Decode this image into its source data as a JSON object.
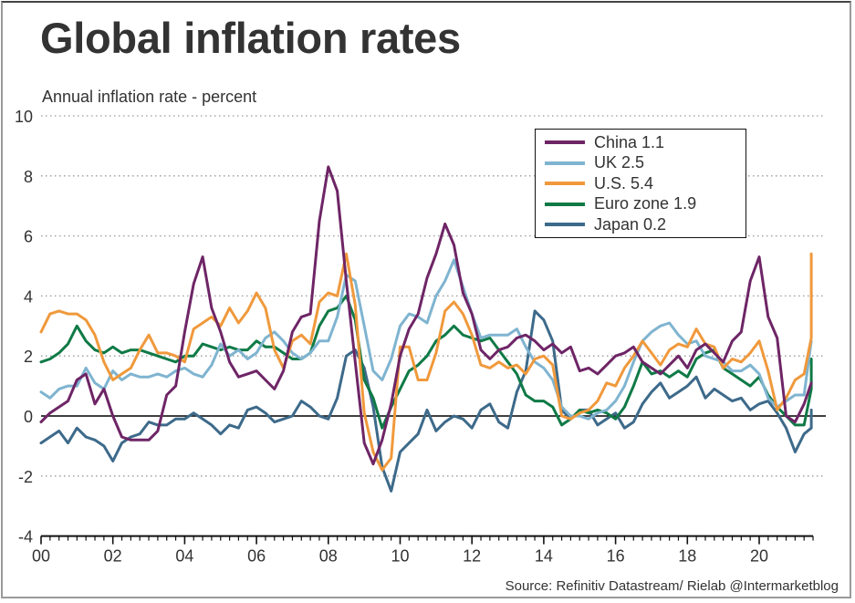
{
  "header": {
    "title": "Global inflation rates",
    "subtitle": "Annual inflation rate - percent",
    "source": "Source: Refinitiv Datastream/ Rielab @Intermarketblog"
  },
  "chart_data": {
    "type": "line",
    "title": "Global inflation rates",
    "subtitle": "Annual inflation rate - percent",
    "xlabel": "",
    "ylabel": "Annual inflation rate - percent",
    "xlim": [
      2000,
      2021.9
    ],
    "ylim": [
      -4,
      10
    ],
    "x_ticks": [
      2000,
      2002,
      2004,
      2006,
      2008,
      2010,
      2012,
      2014,
      2016,
      2018,
      2020
    ],
    "x_tick_labels": [
      "00",
      "02",
      "04",
      "06",
      "08",
      "10",
      "12",
      "14",
      "16",
      "18",
      "20"
    ],
    "y_ticks": [
      -4,
      -2,
      0,
      2,
      4,
      6,
      8,
      10
    ],
    "y_tick_labels": [
      "-4",
      "-2",
      "0",
      "2",
      "4",
      "6",
      "8",
      "10"
    ],
    "grid": "horizontal-dotted",
    "zero_line": true,
    "legend_position": "top-right",
    "x_start": 2000.0,
    "x_step": 0.25,
    "series": [
      {
        "name": "China",
        "legend_label": "China 1.1",
        "latest": 1.1,
        "color": "#6e2566",
        "values": [
          -0.2,
          0.1,
          0.3,
          0.5,
          1.2,
          1.4,
          0.4,
          0.9,
          0.0,
          -0.7,
          -0.8,
          -0.8,
          -0.8,
          -0.5,
          0.7,
          1.0,
          2.8,
          4.4,
          5.3,
          3.6,
          2.8,
          1.8,
          1.3,
          1.4,
          1.5,
          1.2,
          0.9,
          1.5,
          2.8,
          3.3,
          3.4,
          6.5,
          8.3,
          7.5,
          4.5,
          1.8,
          -0.9,
          -1.6,
          -0.8,
          0.4,
          2.0,
          2.9,
          3.4,
          4.6,
          5.4,
          6.4,
          5.7,
          4.1,
          3.4,
          2.2,
          1.9,
          2.2,
          2.3,
          2.6,
          2.7,
          2.5,
          2.2,
          2.4,
          2.1,
          2.3,
          1.5,
          1.6,
          1.4,
          1.7,
          2.0,
          2.1,
          2.3,
          1.8,
          1.6,
          1.4,
          1.7,
          2.0,
          1.6,
          2.2,
          2.4,
          2.1,
          1.8,
          2.5,
          2.8,
          4.5,
          5.3,
          3.3,
          2.6,
          0.0,
          -0.2,
          0.4,
          1.1
        ]
      },
      {
        "name": "UK",
        "legend_label": "UK 2.5",
        "latest": 2.5,
        "color": "#7fb4d0",
        "values": [
          0.8,
          0.6,
          0.9,
          1.0,
          1.0,
          1.6,
          1.1,
          0.9,
          1.5,
          1.2,
          1.4,
          1.3,
          1.3,
          1.4,
          1.3,
          1.5,
          1.6,
          1.4,
          1.3,
          1.7,
          2.4,
          2.0,
          2.2,
          1.9,
          2.1,
          2.6,
          2.8,
          2.5,
          2.1,
          1.9,
          2.1,
          2.5,
          2.5,
          3.3,
          4.7,
          4.5,
          3.0,
          1.5,
          1.2,
          1.9,
          3.0,
          3.4,
          3.3,
          3.1,
          4.0,
          4.5,
          5.2,
          4.3,
          3.4,
          2.6,
          2.7,
          2.7,
          2.7,
          2.9,
          2.3,
          1.8,
          1.6,
          1.2,
          0.3,
          0.0,
          0.0,
          -0.1,
          0.1,
          0.2,
          0.5,
          1.0,
          1.8,
          2.5,
          2.8,
          3.0,
          3.1,
          2.7,
          2.4,
          2.5,
          2.0,
          1.9,
          1.8,
          1.5,
          1.5,
          1.7,
          1.4,
          0.6,
          0.3,
          0.5,
          0.7,
          0.7,
          2.5
        ]
      },
      {
        "name": "U.S.",
        "legend_label": "U.S. 5.4",
        "latest": 5.4,
        "color": "#f0993c",
        "values": [
          2.8,
          3.4,
          3.5,
          3.4,
          3.4,
          3.2,
          2.7,
          1.8,
          1.2,
          1.4,
          1.6,
          2.2,
          2.7,
          2.1,
          2.1,
          2.0,
          1.8,
          2.9,
          3.1,
          3.3,
          3.0,
          3.6,
          3.1,
          3.5,
          4.1,
          3.6,
          2.2,
          1.6,
          2.5,
          2.7,
          2.4,
          3.8,
          4.1,
          4.0,
          5.4,
          3.7,
          0.1,
          -1.2,
          -1.8,
          -1.4,
          2.3,
          2.3,
          1.2,
          1.2,
          2.1,
          3.5,
          3.8,
          3.4,
          2.7,
          1.7,
          1.6,
          1.8,
          1.6,
          1.7,
          1.4,
          1.9,
          2.0,
          1.7,
          0.0,
          -0.1,
          0.1,
          0.2,
          0.5,
          1.1,
          1.0,
          1.6,
          2.0,
          2.5,
          2.1,
          1.7,
          2.2,
          2.4,
          2.3,
          2.9,
          2.4,
          2.3,
          1.6,
          1.9,
          1.8,
          2.1,
          2.5,
          1.5,
          0.2,
          0.6,
          1.2,
          1.4,
          2.6,
          5.4
        ]
      },
      {
        "name": "Euro zone",
        "legend_label": "Euro zone 1.9",
        "latest": 1.9,
        "color": "#0f7a46",
        "values": [
          1.8,
          1.9,
          2.1,
          2.4,
          3.0,
          2.5,
          2.2,
          2.1,
          2.3,
          2.1,
          2.2,
          2.2,
          2.1,
          2.0,
          1.9,
          1.8,
          2.0,
          2.0,
          2.4,
          2.3,
          2.2,
          2.3,
          2.2,
          2.2,
          2.5,
          2.3,
          2.3,
          2.1,
          1.9,
          1.9,
          2.1,
          3.0,
          3.5,
          3.6,
          4.0,
          3.2,
          1.2,
          0.6,
          -0.4,
          0.3,
          0.9,
          1.5,
          1.7,
          2.0,
          2.5,
          2.7,
          3.0,
          2.7,
          2.6,
          2.5,
          2.6,
          2.2,
          1.8,
          1.4,
          0.7,
          0.5,
          0.5,
          0.3,
          -0.3,
          -0.1,
          0.2,
          0.1,
          0.2,
          0.1,
          -0.1,
          0.3,
          1.0,
          1.8,
          1.4,
          1.5,
          1.3,
          1.5,
          1.3,
          1.9,
          2.1,
          2.2,
          1.6,
          1.4,
          1.2,
          1.0,
          1.3,
          0.7,
          0.3,
          0.0,
          -0.3,
          -0.3,
          0.9,
          1.9
        ]
      },
      {
        "name": "Japan",
        "legend_label": "Japan 0.2",
        "latest": 0.2,
        "color": "#3d6a8a",
        "values": [
          -0.9,
          -0.7,
          -0.5,
          -0.9,
          -0.4,
          -0.7,
          -0.8,
          -1.0,
          -1.5,
          -0.9,
          -0.7,
          -0.6,
          -0.2,
          -0.3,
          -0.3,
          -0.1,
          -0.1,
          0.1,
          -0.1,
          -0.3,
          -0.6,
          -0.3,
          -0.4,
          0.2,
          0.3,
          0.1,
          -0.2,
          -0.1,
          0.0,
          0.5,
          0.3,
          0.0,
          -0.1,
          0.6,
          2.0,
          2.2,
          1.6,
          0.3,
          -1.7,
          -2.5,
          -1.2,
          -0.9,
          -0.6,
          0.2,
          -0.5,
          -0.2,
          0.0,
          -0.1,
          -0.4,
          0.2,
          0.4,
          -0.2,
          -0.4,
          0.8,
          1.5,
          3.5,
          3.2,
          2.5,
          0.2,
          -0.1,
          0.2,
          0.2,
          -0.3,
          -0.1,
          0.1,
          -0.4,
          -0.2,
          0.4,
          0.8,
          1.1,
          0.6,
          0.8,
          1.0,
          1.3,
          0.6,
          0.9,
          0.7,
          0.5,
          0.6,
          0.2,
          0.4,
          0.5,
          0.1,
          -0.4,
          -1.2,
          -0.6,
          -0.4,
          0.2
        ]
      }
    ]
  },
  "legend": {
    "items": [
      {
        "label": "China 1.1",
        "color": "#6e2566"
      },
      {
        "label": "UK 2.5",
        "color": "#7fb4d0"
      },
      {
        "label": "U.S. 5.4",
        "color": "#f0993c"
      },
      {
        "label": "Euro zone 1.9",
        "color": "#0f7a46"
      },
      {
        "label": "Japan 0.2",
        "color": "#3d6a8a"
      }
    ]
  }
}
